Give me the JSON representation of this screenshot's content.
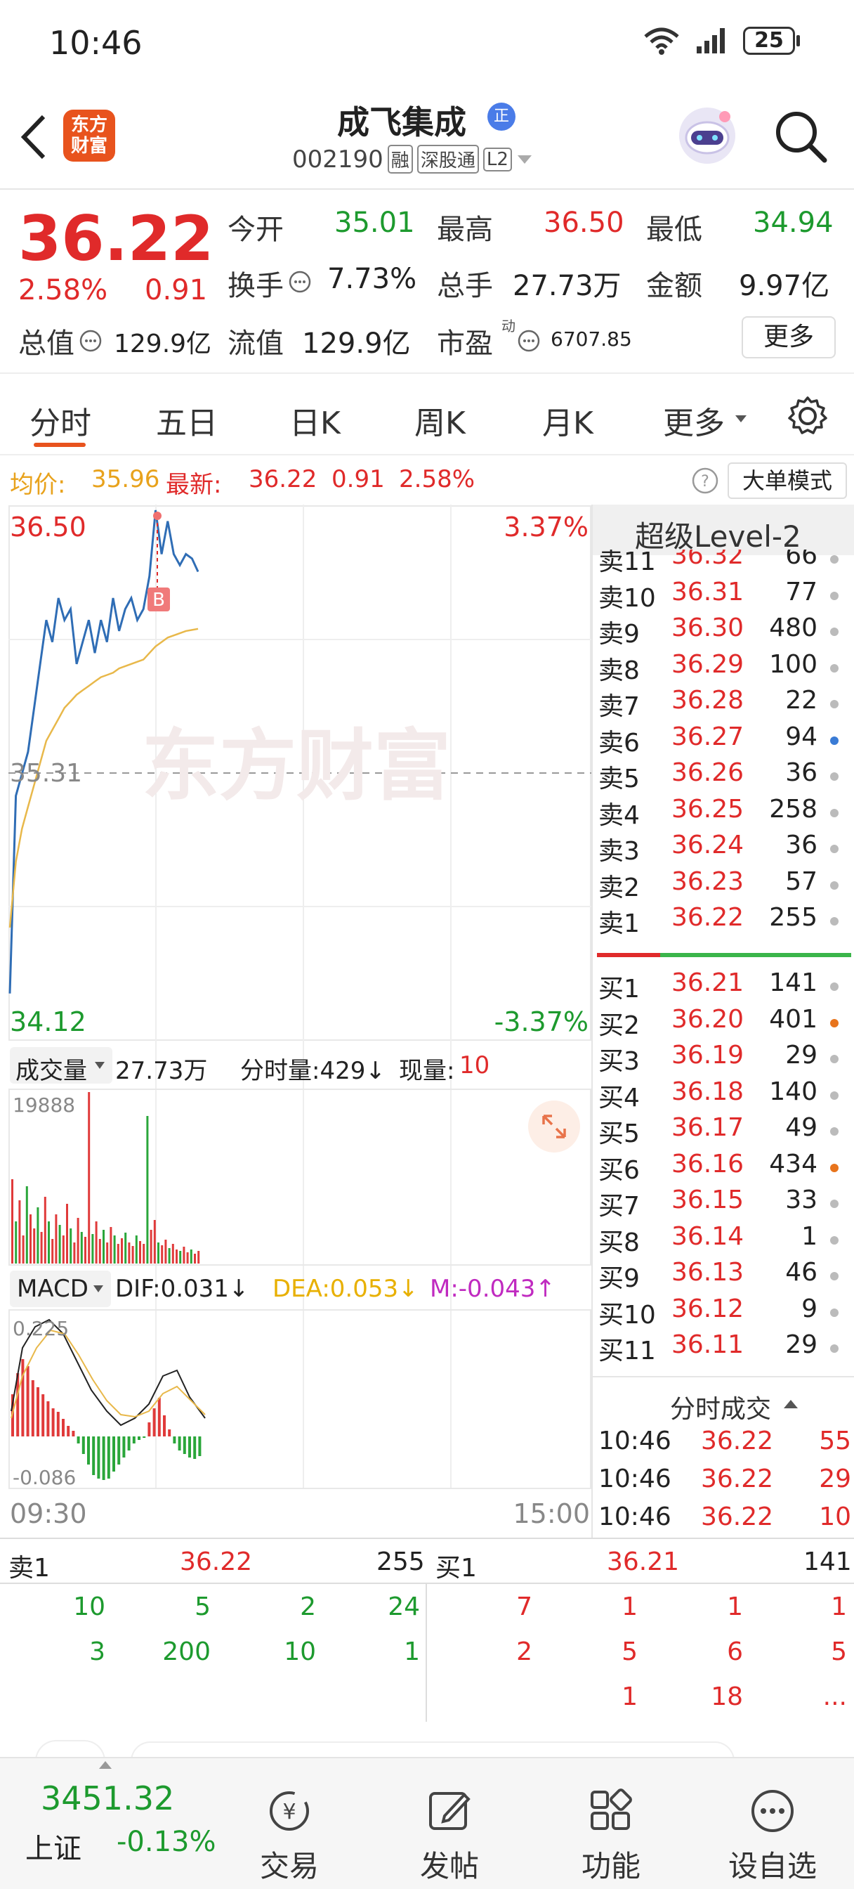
{
  "status": {
    "time": "10:46",
    "battery": "25"
  },
  "header": {
    "logo_text_1": "东方",
    "logo_text_2": "财富",
    "stock_name": "成飞集成",
    "name_badge": "正",
    "stock_code": "002190",
    "tags": [
      "融",
      "深股通",
      "L2"
    ]
  },
  "quote": {
    "price": "36.22",
    "change_pct": "2.58%",
    "change": "0.91",
    "open_label": "今开",
    "open": "35.01",
    "high_label": "最高",
    "high": "36.50",
    "low_label": "最低",
    "low": "34.94",
    "turnover_label": "换手",
    "turnover": "7.73%",
    "volume_label": "总手",
    "volume": "27.73万",
    "amount_label": "金额",
    "amount": "9.97亿",
    "mktcap_label": "总值",
    "mktcap": "129.9亿",
    "float_label": "流值",
    "float": "129.9亿",
    "pe_label": "市盈",
    "pe_sup": "动",
    "pe": "6707.85",
    "more_button": "更多"
  },
  "tabs": [
    "分时",
    "五日",
    "日K",
    "周K",
    "月K",
    "更多"
  ],
  "info": {
    "avg_label": "均价:",
    "avg": "35.96",
    "latest_label": "最新:",
    "latest": "36.22",
    "latest_chg": "0.91",
    "latest_pct": "2.58%",
    "mode_button": "大单模式"
  },
  "chart": {
    "top_price": "36.50",
    "top_pct": "3.37%",
    "mid_price": "35.31",
    "bottom_price": "34.12",
    "bottom_pct": "-3.37%",
    "watermark": "东方财富",
    "buy_marker": "B",
    "vol_label": "成交量",
    "vol_total": "27.73万",
    "vol_tick_label": "分时量:429↓",
    "vol_now_label": "现量:",
    "vol_now": "10",
    "vol_max": "19888",
    "macd_label": "MACD",
    "dif": "DIF:0.031↓",
    "dea": "DEA:0.053↓",
    "m": "M:-0.043↑",
    "macd_top": "0.225",
    "macd_bottom": "-0.086",
    "time_start": "09:30",
    "time_end": "15:00"
  },
  "chart_data": {
    "type": "line",
    "title": "",
    "ylim": [
      34.12,
      36.5
    ],
    "reference_price": 35.31,
    "series": [
      {
        "values": [
          34.3,
          35.2,
          35.3,
          35.4,
          35.6,
          35.8,
          36.0,
          35.9,
          36.1,
          36.0,
          36.05,
          35.8,
          35.9,
          36.0,
          35.85,
          36.0,
          35.9,
          36.1,
          35.95,
          36.05,
          36.1,
          36.0,
          36.05,
          36.2,
          36.5,
          36.3,
          36.45,
          36.3,
          36.25,
          36.3,
          36.28,
          36.22
        ]
      },
      {
        "values": [
          34.6,
          34.9,
          35.05,
          35.15,
          35.25,
          35.35,
          35.45,
          35.5,
          35.55,
          35.6,
          35.63,
          35.66,
          35.68,
          35.7,
          35.72,
          35.74,
          35.75,
          35.76,
          35.78,
          35.79,
          35.8,
          35.81,
          35.82,
          35.85,
          35.88,
          35.9,
          35.92,
          35.93,
          35.94,
          35.95,
          35.955,
          35.96
        ]
      }
    ]
  },
  "orderbook": {
    "title": "超级Level-2",
    "sells": [
      {
        "label": "卖11",
        "price": "36.32",
        "vol": "66",
        "dot": "#bbbbbb"
      },
      {
        "label": "卖10",
        "price": "36.31",
        "vol": "77",
        "dot": "#bbbbbb"
      },
      {
        "label": "卖9",
        "price": "36.30",
        "vol": "480",
        "dot": "#bbbbbb"
      },
      {
        "label": "卖8",
        "price": "36.29",
        "vol": "100",
        "dot": "#bbbbbb"
      },
      {
        "label": "卖7",
        "price": "36.28",
        "vol": "22",
        "dot": "#bbbbbb"
      },
      {
        "label": "卖6",
        "price": "36.27",
        "vol": "94",
        "dot": "#3a7bd5"
      },
      {
        "label": "卖5",
        "price": "36.26",
        "vol": "36",
        "dot": "#bbbbbb"
      },
      {
        "label": "卖4",
        "price": "36.25",
        "vol": "258",
        "dot": "#bbbbbb"
      },
      {
        "label": "卖3",
        "price": "36.24",
        "vol": "36",
        "dot": "#bbbbbb"
      },
      {
        "label": "卖2",
        "price": "36.23",
        "vol": "57",
        "dot": "#bbbbbb"
      },
      {
        "label": "卖1",
        "price": "36.22",
        "vol": "255",
        "dot": "#bbbbbb"
      }
    ],
    "buys": [
      {
        "label": "买1",
        "price": "36.21",
        "vol": "141",
        "dot": "#bbbbbb"
      },
      {
        "label": "买2",
        "price": "36.20",
        "vol": "401",
        "dot": "#e8741c"
      },
      {
        "label": "买3",
        "price": "36.19",
        "vol": "29",
        "dot": "#bbbbbb"
      },
      {
        "label": "买4",
        "price": "36.18",
        "vol": "140",
        "dot": "#bbbbbb"
      },
      {
        "label": "买5",
        "price": "36.17",
        "vol": "49",
        "dot": "#bbbbbb"
      },
      {
        "label": "买6",
        "price": "36.16",
        "vol": "434",
        "dot": "#e8741c"
      },
      {
        "label": "买7",
        "price": "36.15",
        "vol": "33",
        "dot": "#bbbbbb"
      },
      {
        "label": "买8",
        "price": "36.14",
        "vol": "1",
        "dot": "#bbbbbb"
      },
      {
        "label": "买9",
        "price": "36.13",
        "vol": "46",
        "dot": "#bbbbbb"
      },
      {
        "label": "买10",
        "price": "36.12",
        "vol": "9",
        "dot": "#bbbbbb"
      },
      {
        "label": "买11",
        "price": "36.11",
        "vol": "29",
        "dot": "#bbbbbb"
      }
    ],
    "trades_title": "分时成交",
    "trades": [
      {
        "time": "10:46",
        "price": "36.22",
        "vol": "55"
      },
      {
        "time": "10:46",
        "price": "36.22",
        "vol": "29"
      },
      {
        "time": "10:46",
        "price": "36.22",
        "vol": "10"
      }
    ]
  },
  "queue": {
    "sell_label": "卖1",
    "sell_price": "36.22",
    "sell_vol": "255",
    "buy_label": "买1",
    "buy_price": "36.21",
    "buy_vol": "141",
    "sell_rows": [
      [
        "10",
        "5",
        "2",
        "24"
      ],
      [
        "3",
        "200",
        "10",
        "1"
      ]
    ],
    "buy_rows": [
      [
        "7",
        "1",
        "1",
        "1"
      ],
      [
        "2",
        "5",
        "6",
        "5"
      ],
      [
        "",
        "1",
        "18",
        "..."
      ]
    ]
  },
  "bottom_nav": {
    "index_value": "3451.32",
    "index_name": "上证",
    "index_pct": "-0.13%",
    "items": [
      "交易",
      "发帖",
      "功能",
      "设自选"
    ]
  },
  "colors": {
    "red": "#e02a2a",
    "green": "#1d9a2e",
    "price_line": "#2f6db5",
    "avg_line": "#e8b84a"
  }
}
